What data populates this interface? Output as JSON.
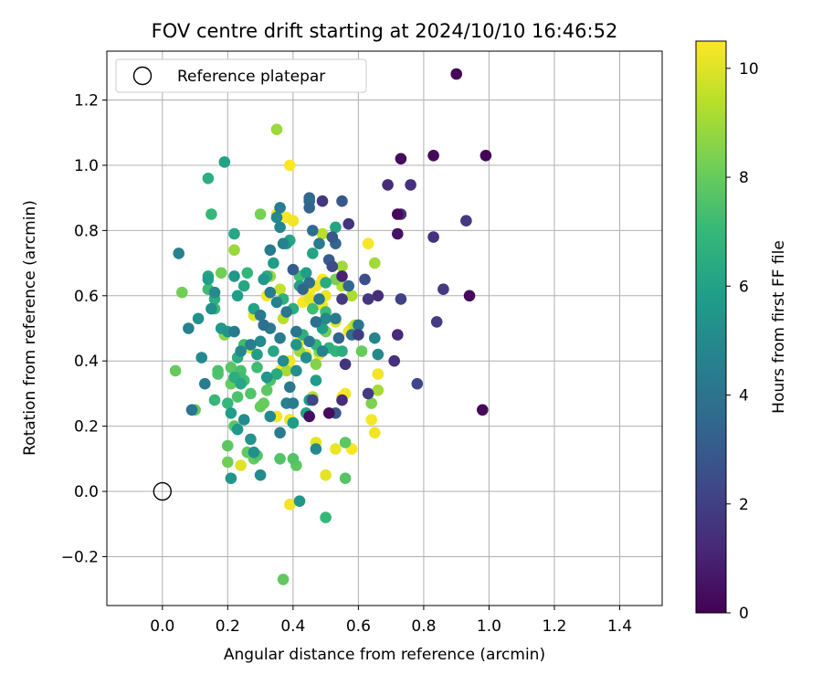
{
  "chart_data": {
    "type": "scatter",
    "title": "FOV centre drift starting at 2024/10/10 16:46:52",
    "xlabel": "Angular distance from reference (arcmin)",
    "ylabel": "Rotation from reference (arcmin)",
    "xlim": [
      -0.17,
      1.53
    ],
    "ylim": [
      -0.35,
      1.35
    ],
    "xticks": [
      0.0,
      0.2,
      0.4,
      0.6,
      0.8,
      1.0,
      1.2,
      1.4
    ],
    "xtick_labels": [
      "0.0",
      "0.2",
      "0.4",
      "0.6",
      "0.8",
      "1.0",
      "1.2",
      "1.4"
    ],
    "yticks": [
      -0.2,
      0.0,
      0.2,
      0.4,
      0.6,
      0.8,
      1.0,
      1.2
    ],
    "ytick_labels": [
      "−0.2",
      "0.0",
      "0.2",
      "0.4",
      "0.6",
      "0.8",
      "1.0",
      "1.2"
    ],
    "grid": true,
    "legend": {
      "placement": "top-left",
      "entries": [
        "Reference platepar"
      ]
    },
    "reference": {
      "x": 0.0,
      "y": 0.0,
      "label": "Reference platepar"
    },
    "colorbar": {
      "label": "Hours from first FF file",
      "range": [
        0,
        10.5
      ],
      "ticks": [
        0,
        2,
        4,
        6,
        8,
        10
      ],
      "tick_labels": [
        "0",
        "2",
        "4",
        "6",
        "8",
        "10"
      ],
      "colormap": "viridis",
      "colormap_stops": [
        "#440154",
        "#482878",
        "#3e4989",
        "#31688e",
        "#26828e",
        "#1f9e89",
        "#35b779",
        "#6ece58",
        "#b5de2b",
        "#fde725"
      ]
    },
    "points": [
      [
        0.9,
        1.28,
        0.1
      ],
      [
        0.99,
        1.03,
        0.1
      ],
      [
        0.83,
        1.03,
        0.2
      ],
      [
        0.73,
        1.02,
        0.3
      ],
      [
        0.72,
        0.85,
        0.2
      ],
      [
        0.94,
        0.6,
        0.2
      ],
      [
        0.98,
        0.25,
        0.2
      ],
      [
        0.72,
        0.79,
        0.5
      ],
      [
        0.69,
        0.94,
        1.3
      ],
      [
        0.76,
        0.94,
        1.5
      ],
      [
        0.73,
        0.85,
        1.6
      ],
      [
        0.83,
        0.78,
        1.5
      ],
      [
        0.93,
        0.83,
        1.8
      ],
      [
        0.86,
        0.62,
        1.8
      ],
      [
        0.84,
        0.52,
        1.9
      ],
      [
        0.78,
        0.33,
        2.3
      ],
      [
        0.72,
        0.48,
        1.2
      ],
      [
        0.71,
        0.4,
        1.5
      ],
      [
        0.73,
        0.59,
        2.1
      ],
      [
        0.66,
        0.6,
        1.3
      ],
      [
        0.63,
        0.59,
        1.7
      ],
      [
        0.63,
        0.3,
        1.8
      ],
      [
        0.62,
        0.65,
        2.5
      ],
      [
        0.6,
        0.48,
        1.9
      ],
      [
        0.57,
        0.82,
        1.6
      ],
      [
        0.55,
        0.89,
        2.9
      ],
      [
        0.49,
        0.89,
        1.7
      ],
      [
        0.55,
        0.66,
        1.0
      ],
      [
        0.55,
        0.59,
        1.8
      ],
      [
        0.56,
        0.39,
        1.6
      ],
      [
        0.55,
        0.28,
        1.3
      ],
      [
        0.51,
        0.24,
        0.3
      ],
      [
        0.45,
        0.23,
        0.4
      ],
      [
        0.46,
        0.28,
        2.2
      ],
      [
        0.53,
        0.24,
        2.8
      ],
      [
        0.45,
        0.9,
        3.5
      ],
      [
        0.45,
        0.89,
        3.6
      ],
      [
        0.45,
        0.87,
        3.4
      ],
      [
        0.46,
        0.8,
        3.7
      ],
      [
        0.51,
        0.71,
        3.0
      ],
      [
        0.52,
        0.69,
        2.4
      ],
      [
        0.52,
        0.78,
        2.9
      ],
      [
        0.53,
        0.76,
        3.4
      ],
      [
        0.48,
        0.76,
        4.3
      ],
      [
        0.43,
        0.62,
        3.4
      ],
      [
        0.4,
        0.68,
        3.1
      ],
      [
        0.37,
        0.76,
        4.6
      ],
      [
        0.33,
        0.74,
        4.3
      ],
      [
        0.35,
        0.84,
        4.9
      ],
      [
        0.36,
        0.81,
        4.8
      ],
      [
        0.36,
        0.87,
        4.5
      ],
      [
        0.45,
        0.64,
        3.8
      ],
      [
        0.47,
        0.52,
        3.8
      ],
      [
        0.48,
        0.59,
        4.2
      ],
      [
        0.5,
        0.53,
        4.9
      ],
      [
        0.53,
        0.53,
        4.3
      ],
      [
        0.57,
        0.63,
        3.5
      ],
      [
        0.6,
        0.51,
        4.1
      ],
      [
        0.65,
        0.47,
        4.8
      ],
      [
        0.66,
        0.42,
        4.9
      ],
      [
        0.58,
        0.48,
        3.9
      ],
      [
        0.54,
        0.47,
        3.4
      ],
      [
        0.49,
        0.43,
        4.7
      ],
      [
        0.45,
        0.46,
        4.2
      ],
      [
        0.41,
        0.49,
        4.1
      ],
      [
        0.38,
        0.55,
        4.2
      ],
      [
        0.35,
        0.58,
        4.6
      ],
      [
        0.33,
        0.61,
        4.4
      ],
      [
        0.3,
        0.54,
        4.2
      ],
      [
        0.31,
        0.51,
        3.9
      ],
      [
        0.33,
        0.5,
        4.3
      ],
      [
        0.36,
        0.47,
        4.4
      ],
      [
        0.3,
        0.46,
        5.0
      ],
      [
        0.27,
        0.45,
        4.5
      ],
      [
        0.24,
        0.43,
        4.9
      ],
      [
        0.22,
        0.49,
        4.3
      ],
      [
        0.2,
        0.49,
        5.4
      ],
      [
        0.18,
        0.5,
        5.6
      ],
      [
        0.15,
        0.56,
        5.2
      ],
      [
        0.08,
        0.5,
        4.6
      ],
      [
        0.05,
        0.73,
        4.6
      ],
      [
        0.11,
        0.53,
        5.3
      ],
      [
        0.16,
        0.61,
        5.0
      ],
      [
        0.12,
        0.41,
        5.0
      ],
      [
        0.13,
        0.33,
        4.4
      ],
      [
        0.09,
        0.25,
        4.1
      ],
      [
        0.21,
        0.24,
        5.9
      ],
      [
        0.23,
        0.19,
        5.6
      ],
      [
        0.25,
        0.22,
        5.1
      ],
      [
        0.27,
        0.16,
        5.4
      ],
      [
        0.28,
        0.12,
        5.3
      ],
      [
        0.21,
        0.04,
        5.5
      ],
      [
        0.3,
        0.05,
        5.1
      ],
      [
        0.33,
        0.23,
        4.9
      ],
      [
        0.36,
        0.18,
        4.4
      ],
      [
        0.38,
        0.27,
        4.6
      ],
      [
        0.39,
        0.32,
        4.2
      ],
      [
        0.4,
        0.27,
        4.4
      ],
      [
        0.41,
        0.37,
        5.2
      ],
      [
        0.37,
        0.4,
        5.1
      ],
      [
        0.41,
        0.45,
        5.4
      ],
      [
        0.44,
        0.41,
        5.2
      ],
      [
        0.47,
        0.34,
        5.8
      ],
      [
        0.45,
        0.28,
        5.5
      ],
      [
        0.47,
        0.13,
        4.9
      ],
      [
        0.42,
        -0.03,
        5.5
      ],
      [
        0.4,
        0.21,
        5.8
      ],
      [
        0.44,
        0.24,
        6.0
      ],
      [
        0.34,
        0.43,
        6.2
      ],
      [
        0.35,
        0.36,
        6.4
      ],
      [
        0.32,
        0.35,
        5.5
      ],
      [
        0.29,
        0.42,
        5.9
      ],
      [
        0.24,
        0.33,
        6.2
      ],
      [
        0.22,
        0.35,
        6.6
      ],
      [
        0.23,
        0.6,
        5.9
      ],
      [
        0.22,
        0.66,
        5.5
      ],
      [
        0.25,
        0.63,
        6.2
      ],
      [
        0.28,
        0.56,
        6.0
      ],
      [
        0.31,
        0.65,
        5.6
      ],
      [
        0.32,
        0.66,
        6.3
      ],
      [
        0.34,
        0.7,
        5.8
      ],
      [
        0.38,
        0.76,
        5.9
      ],
      [
        0.39,
        0.77,
        6.2
      ],
      [
        0.42,
        0.63,
        6.0
      ],
      [
        0.44,
        0.67,
        5.9
      ],
      [
        0.46,
        0.73,
        6.1
      ],
      [
        0.5,
        0.64,
        6.4
      ],
      [
        0.53,
        0.81,
        6.1
      ],
      [
        0.55,
        0.43,
        6.5
      ],
      [
        0.53,
        0.43,
        6.9
      ],
      [
        0.51,
        0.44,
        6.7
      ],
      [
        0.49,
        0.5,
        5.9
      ],
      [
        0.43,
        0.48,
        6.7
      ],
      [
        0.47,
        0.45,
        6.9
      ],
      [
        0.5,
        0.55,
        7.1
      ],
      [
        0.46,
        0.56,
        7.2
      ],
      [
        0.4,
        0.56,
        6.5
      ],
      [
        0.37,
        0.59,
        6.7
      ],
      [
        0.42,
        0.66,
        7.3
      ],
      [
        0.14,
        0.65,
        5.9
      ],
      [
        0.14,
        0.66,
        6.2
      ],
      [
        0.19,
        1.01,
        6.0
      ],
      [
        0.22,
        0.79,
        6.2
      ],
      [
        0.14,
        0.96,
        6.6
      ],
      [
        0.15,
        0.85,
        7.0
      ],
      [
        0.16,
        0.59,
        6.6
      ],
      [
        0.14,
        0.62,
        7.2
      ],
      [
        0.16,
        0.56,
        7.1
      ],
      [
        0.26,
        0.67,
        6.9
      ],
      [
        0.25,
        0.45,
        7.2
      ],
      [
        0.23,
        0.41,
        6.5
      ],
      [
        0.2,
        0.27,
        7.0
      ],
      [
        0.16,
        0.28,
        7.0
      ],
      [
        0.17,
        0.37,
        7.5
      ],
      [
        0.17,
        0.36,
        7.5
      ],
      [
        0.21,
        0.38,
        7.7
      ],
      [
        0.24,
        0.37,
        7.4
      ],
      [
        0.24,
        0.35,
        7.2
      ],
      [
        0.25,
        0.34,
        7.4
      ],
      [
        0.21,
        0.33,
        8.0
      ],
      [
        0.23,
        0.29,
        7.5
      ],
      [
        0.27,
        0.3,
        7.6
      ],
      [
        0.29,
        0.38,
        7.2
      ],
      [
        0.33,
        0.34,
        7.5
      ],
      [
        0.32,
        0.31,
        7.8
      ],
      [
        0.31,
        0.27,
        8.0
      ],
      [
        0.3,
        0.26,
        8.0
      ],
      [
        0.28,
        0.1,
        8.0
      ],
      [
        0.29,
        0.11,
        7.6
      ],
      [
        0.26,
        0.12,
        7.9
      ],
      [
        0.2,
        0.09,
        8.2
      ],
      [
        0.2,
        0.14,
        7.8
      ],
      [
        0.22,
        0.2,
        7.7
      ],
      [
        0.1,
        0.25,
        7.9
      ],
      [
        0.04,
        0.37,
        8.0
      ],
      [
        0.06,
        0.61,
        8.2
      ],
      [
        0.19,
        0.48,
        8.6
      ],
      [
        0.22,
        0.74,
        8.9
      ],
      [
        0.18,
        0.67,
        8.2
      ],
      [
        0.3,
        0.85,
        8.3
      ],
      [
        0.35,
        1.11,
        8.9
      ],
      [
        0.33,
        0.66,
        8.8
      ],
      [
        0.41,
        0.49,
        8.6
      ],
      [
        0.42,
        0.43,
        8.9
      ],
      [
        0.47,
        0.39,
        8.5
      ],
      [
        0.48,
        0.43,
        8.5
      ],
      [
        0.5,
        0.49,
        8.2
      ],
      [
        0.53,
        0.65,
        8.3
      ],
      [
        0.55,
        0.69,
        9.0
      ],
      [
        0.59,
        0.51,
        9.3
      ],
      [
        0.61,
        0.43,
        8.0
      ],
      [
        0.64,
        0.27,
        8.4
      ],
      [
        0.66,
        0.31,
        9.1
      ],
      [
        0.65,
        0.7,
        9.0
      ],
      [
        0.56,
        0.04,
        7.7
      ],
      [
        0.56,
        0.15,
        7.8
      ],
      [
        0.5,
        -0.08,
        7.0
      ],
      [
        0.41,
        0.08,
        7.8
      ],
      [
        0.4,
        0.1,
        7.6
      ],
      [
        0.36,
        0.1,
        7.6
      ],
      [
        0.4,
        0.21,
        8.0
      ],
      [
        0.38,
        0.37,
        9.1
      ],
      [
        0.37,
        0.53,
        9.4
      ],
      [
        0.46,
        0.29,
        9.3
      ],
      [
        0.47,
        0.15,
        10.1
      ],
      [
        0.53,
        0.13,
        10.2
      ],
      [
        0.58,
        0.13,
        10.4
      ],
      [
        0.55,
        0.29,
        10.5
      ],
      [
        0.56,
        0.3,
        10.4
      ],
      [
        0.64,
        0.22,
        10.4
      ],
      [
        0.65,
        0.18,
        10.3
      ],
      [
        0.66,
        0.36,
        10.3
      ],
      [
        0.63,
        0.76,
        10.4
      ],
      [
        0.57,
        0.49,
        10.3
      ],
      [
        0.58,
        0.5,
        10.0
      ],
      [
        0.53,
        0.52,
        10.1
      ],
      [
        0.5,
        0.6,
        10.2
      ],
      [
        0.49,
        0.52,
        10.5
      ],
      [
        0.49,
        0.57,
        10.3
      ],
      [
        0.47,
        0.63,
        10.3
      ],
      [
        0.45,
        0.61,
        10.4
      ],
      [
        0.43,
        0.58,
        10.5
      ],
      [
        0.45,
        0.59,
        10.1
      ],
      [
        0.49,
        0.65,
        10.5
      ],
      [
        0.48,
        0.42,
        10.3
      ],
      [
        0.44,
        0.42,
        10.4
      ],
      [
        0.41,
        0.45,
        10.2
      ],
      [
        0.42,
        0.46,
        10.5
      ],
      [
        0.38,
        0.38,
        10.4
      ],
      [
        0.39,
        0.4,
        10.3
      ],
      [
        0.36,
        0.37,
        10.4
      ],
      [
        0.35,
        0.23,
        10.4
      ],
      [
        0.39,
        0.22,
        10.3
      ],
      [
        0.39,
        -0.04,
        10.3
      ],
      [
        0.38,
        0.84,
        10.5
      ],
      [
        0.4,
        0.83,
        10.3
      ],
      [
        0.35,
        0.85,
        10.4
      ],
      [
        0.39,
        1.0,
        10.5
      ],
      [
        0.32,
        0.6,
        10.3
      ],
      [
        0.28,
        0.54,
        10.1
      ],
      [
        0.27,
        0.44,
        10.1
      ],
      [
        0.24,
        0.08,
        10.0
      ],
      [
        0.5,
        0.05,
        10.1
      ],
      [
        0.37,
        -0.27,
        7.9
      ],
      [
        0.49,
        0.79,
        9.4
      ],
      [
        0.55,
        0.63,
        9.3
      ],
      [
        0.58,
        0.6,
        9.2
      ],
      [
        0.36,
        0.62,
        9.6
      ]
    ]
  }
}
